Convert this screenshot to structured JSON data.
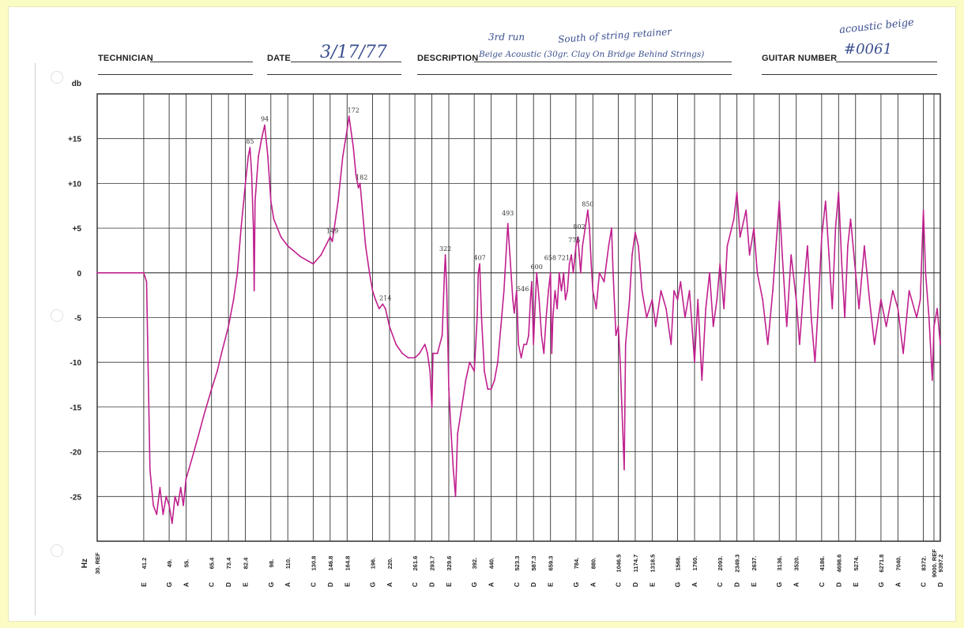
{
  "header": {
    "technician_label": "TECHNICIAN",
    "date_label": "DATE",
    "date_value": "3/17/77",
    "description_label": "DESCRIPTION",
    "description_value": "Beige Acoustic (30gr. Clay On Bridge Behind Strings)",
    "description_note_1": "3rd run",
    "description_note_2": "South of string retainer",
    "guitar_number_label": "GUITAR NUMBER",
    "guitar_number_value": "#0061",
    "corner_note": "acoustic beige"
  },
  "chart_data": {
    "type": "line",
    "ylabel": "db",
    "xlabel": "Hz",
    "ylim": [
      -30,
      20
    ],
    "y_ticks": [
      {
        "value": 15,
        "label": "+15"
      },
      {
        "value": 10,
        "label": "+10"
      },
      {
        "value": 5,
        "label": "+5"
      },
      {
        "value": 0,
        "label": "0"
      },
      {
        "value": -5,
        "label": "-5"
      },
      {
        "value": -10,
        "label": "-10"
      },
      {
        "value": -15,
        "label": "-15"
      },
      {
        "value": -20,
        "label": "-20"
      },
      {
        "value": -25,
        "label": "-25"
      }
    ],
    "x_ticks": [
      {
        "freq": "30. REF",
        "note": ""
      },
      {
        "freq": "41.2",
        "note": "E"
      },
      {
        "freq": "49.",
        "note": "G"
      },
      {
        "freq": "55.",
        "note": "A"
      },
      {
        "freq": "65.4",
        "note": "C"
      },
      {
        "freq": "73.4",
        "note": "D"
      },
      {
        "freq": "82.4",
        "note": "E"
      },
      {
        "freq": "98.",
        "note": "G"
      },
      {
        "freq": "110.",
        "note": "A"
      },
      {
        "freq": "130.8",
        "note": "C"
      },
      {
        "freq": "146.8",
        "note": "D"
      },
      {
        "freq": "164.8",
        "note": "E"
      },
      {
        "freq": "196.",
        "note": "G"
      },
      {
        "freq": "220.",
        "note": "A"
      },
      {
        "freq": "261.6",
        "note": "C"
      },
      {
        "freq": "293.7",
        "note": "D"
      },
      {
        "freq": "329.6",
        "note": "E"
      },
      {
        "freq": "392.",
        "note": "G"
      },
      {
        "freq": "440.",
        "note": "A"
      },
      {
        "freq": "523.3",
        "note": "C"
      },
      {
        "freq": "587.3",
        "note": "D"
      },
      {
        "freq": "659.3",
        "note": "E"
      },
      {
        "freq": "784.",
        "note": "G"
      },
      {
        "freq": "880.",
        "note": "A"
      },
      {
        "freq": "1046.5",
        "note": "C"
      },
      {
        "freq": "1174.7",
        "note": "D"
      },
      {
        "freq": "1318.5",
        "note": "E"
      },
      {
        "freq": "1568.",
        "note": "G"
      },
      {
        "freq": "1760.",
        "note": "A"
      },
      {
        "freq": "2093.",
        "note": "C"
      },
      {
        "freq": "2349.3",
        "note": "D"
      },
      {
        "freq": "2637.",
        "note": "E"
      },
      {
        "freq": "3136.",
        "note": "G"
      },
      {
        "freq": "3520.",
        "note": "A"
      },
      {
        "freq": "4186.",
        "note": "C"
      },
      {
        "freq": "4698.6",
        "note": "D"
      },
      {
        "freq": "5274.",
        "note": "E"
      },
      {
        "freq": "6271.8",
        "note": "G"
      },
      {
        "freq": "7040.",
        "note": "A"
      },
      {
        "freq": "8372.",
        "note": "C"
      },
      {
        "freq": "9000. REF",
        "note": ""
      },
      {
        "freq": "9397.2",
        "note": "D"
      }
    ],
    "series": [
      {
        "color": "#c0208e",
        "points": [
          [
            30,
            0
          ],
          [
            40,
            0
          ],
          [
            41.2,
            0
          ],
          [
            42,
            -1
          ],
          [
            43,
            -22
          ],
          [
            44,
            -26
          ],
          [
            45,
            -27
          ],
          [
            46,
            -24
          ],
          [
            47,
            -27
          ],
          [
            48,
            -25
          ],
          [
            49,
            -26
          ],
          [
            50,
            -28
          ],
          [
            51,
            -25
          ],
          [
            52,
            -26
          ],
          [
            53,
            -24
          ],
          [
            54,
            -26
          ],
          [
            55,
            -23
          ],
          [
            56,
            -22
          ],
          [
            58,
            -20
          ],
          [
            60,
            -18
          ],
          [
            62,
            -16
          ],
          [
            65.4,
            -13
          ],
          [
            68,
            -11
          ],
          [
            70,
            -9
          ],
          [
            73.4,
            -6
          ],
          [
            76,
            -3
          ],
          [
            78,
            0
          ],
          [
            80,
            5
          ],
          [
            82.4,
            10
          ],
          [
            84,
            13
          ],
          [
            85,
            14
          ],
          [
            86,
            11
          ],
          [
            87,
            5
          ],
          [
            87.5,
            -2
          ],
          [
            88,
            8
          ],
          [
            90,
            13
          ],
          [
            92,
            15
          ],
          [
            94,
            16.5
          ],
          [
            96,
            13
          ],
          [
            98,
            8
          ],
          [
            100,
            6
          ],
          [
            105,
            4
          ],
          [
            110,
            3
          ],
          [
            120,
            1.8
          ],
          [
            130.8,
            1
          ],
          [
            138,
            2
          ],
          [
            146.8,
            4
          ],
          [
            149,
            3.5
          ],
          [
            155,
            8
          ],
          [
            160,
            13
          ],
          [
            164.8,
            16
          ],
          [
            167,
            17.5
          ],
          [
            172,
            14
          ],
          [
            175,
            11
          ],
          [
            178,
            9.5
          ],
          [
            180,
            10
          ],
          [
            182,
            8
          ],
          [
            187,
            3
          ],
          [
            192,
            0
          ],
          [
            196,
            -2
          ],
          [
            200,
            -3
          ],
          [
            205,
            -4
          ],
          [
            210,
            -3.5
          ],
          [
            214,
            -4
          ],
          [
            220,
            -6
          ],
          [
            230,
            -8
          ],
          [
            240,
            -9
          ],
          [
            250,
            -9.5
          ],
          [
            261.6,
            -9.5
          ],
          [
            270,
            -9
          ],
          [
            280,
            -8
          ],
          [
            285,
            -9
          ],
          [
            290,
            -11
          ],
          [
            293.7,
            -15
          ],
          [
            296,
            -9
          ],
          [
            305,
            -9
          ],
          [
            315,
            -7
          ],
          [
            320,
            0
          ],
          [
            322,
            2
          ],
          [
            325,
            -2
          ],
          [
            329.6,
            -13
          ],
          [
            335,
            -18
          ],
          [
            340,
            -22
          ],
          [
            345,
            -25
          ],
          [
            350,
            -18
          ],
          [
            360,
            -15
          ],
          [
            370,
            -12
          ],
          [
            380,
            -10
          ],
          [
            392,
            -11
          ],
          [
            400,
            -5
          ],
          [
            403,
            0
          ],
          [
            407,
            1
          ],
          [
            412,
            -5
          ],
          [
            420,
            -11
          ],
          [
            430,
            -13
          ],
          [
            440,
            -13
          ],
          [
            450,
            -12
          ],
          [
            460,
            -10
          ],
          [
            470,
            -6
          ],
          [
            480,
            -2
          ],
          [
            493,
            5.5
          ],
          [
            500,
            2
          ],
          [
            510,
            -3
          ],
          [
            515,
            -4.5
          ],
          [
            520,
            -3
          ],
          [
            523.3,
            -2
          ],
          [
            530,
            -8
          ],
          [
            540,
            -9.5
          ],
          [
            550,
            -8
          ],
          [
            560,
            -8
          ],
          [
            568,
            -7
          ],
          [
            575,
            -3
          ],
          [
            580,
            -1
          ],
          [
            587.3,
            -8
          ],
          [
            590,
            -6
          ],
          [
            600,
            0
          ],
          [
            610,
            -3
          ],
          [
            620,
            -7
          ],
          [
            630,
            -9
          ],
          [
            640,
            -5
          ],
          [
            650,
            -2
          ],
          [
            659.3,
            0
          ],
          [
            665,
            -9
          ],
          [
            670,
            -5
          ],
          [
            680,
            -2
          ],
          [
            690,
            -4
          ],
          [
            700,
            0
          ],
          [
            710,
            -2
          ],
          [
            721,
            0
          ],
          [
            730,
            -3
          ],
          [
            740,
            -2
          ],
          [
            750,
            1
          ],
          [
            760,
            2
          ],
          [
            770,
            0
          ],
          [
            784,
            3
          ],
          [
            795,
            4
          ],
          [
            802,
            2
          ],
          [
            810,
            0
          ],
          [
            820,
            3
          ],
          [
            835,
            5
          ],
          [
            850,
            7
          ],
          [
            860,
            5
          ],
          [
            870,
            1
          ],
          [
            880,
            -2
          ],
          [
            900,
            -4
          ],
          [
            920,
            0
          ],
          [
            950,
            -1
          ],
          [
            980,
            3
          ],
          [
            1000,
            5
          ],
          [
            1010,
            0
          ],
          [
            1030,
            -7
          ],
          [
            1046.5,
            -6
          ],
          [
            1060,
            -10
          ],
          [
            1080,
            -18
          ],
          [
            1090,
            -22
          ],
          [
            1100,
            -8
          ],
          [
            1130,
            -3
          ],
          [
            1150,
            2
          ],
          [
            1174.7,
            4.5
          ],
          [
            1200,
            3
          ],
          [
            1230,
            -2
          ],
          [
            1270,
            -5
          ],
          [
            1318.5,
            -3
          ],
          [
            1350,
            -6
          ],
          [
            1400,
            -2
          ],
          [
            1450,
            -4
          ],
          [
            1500,
            -8
          ],
          [
            1530,
            -2
          ],
          [
            1568,
            -3
          ],
          [
            1600,
            -1
          ],
          [
            1650,
            -5
          ],
          [
            1700,
            -2
          ],
          [
            1760,
            -10
          ],
          [
            1800,
            -3
          ],
          [
            1850,
            -12
          ],
          [
            1900,
            -4
          ],
          [
            1950,
            0
          ],
          [
            2000,
            -6
          ],
          [
            2050,
            -3
          ],
          [
            2093,
            1
          ],
          [
            2150,
            -4
          ],
          [
            2200,
            3
          ],
          [
            2300,
            6
          ],
          [
            2349.3,
            9
          ],
          [
            2400,
            4
          ],
          [
            2500,
            7
          ],
          [
            2560,
            2
          ],
          [
            2637,
            5
          ],
          [
            2700,
            0
          ],
          [
            2800,
            -3
          ],
          [
            2900,
            -8
          ],
          [
            3000,
            -2
          ],
          [
            3136,
            8
          ],
          [
            3200,
            2
          ],
          [
            3300,
            -6
          ],
          [
            3400,
            2
          ],
          [
            3520,
            -3
          ],
          [
            3600,
            -8
          ],
          [
            3700,
            -2
          ],
          [
            3800,
            3
          ],
          [
            3900,
            -5
          ],
          [
            4000,
            -10
          ],
          [
            4100,
            -3
          ],
          [
            4186,
            4
          ],
          [
            4300,
            8
          ],
          [
            4400,
            2
          ],
          [
            4500,
            -4
          ],
          [
            4600,
            5
          ],
          [
            4698.6,
            9
          ],
          [
            4800,
            1
          ],
          [
            4900,
            -5
          ],
          [
            5000,
            3
          ],
          [
            5100,
            6
          ],
          [
            5274,
            0
          ],
          [
            5400,
            -4
          ],
          [
            5600,
            3
          ],
          [
            5800,
            -3
          ],
          [
            6000,
            -8
          ],
          [
            6271.8,
            -3
          ],
          [
            6500,
            -6
          ],
          [
            6800,
            -2
          ],
          [
            7040,
            -4
          ],
          [
            7300,
            -9
          ],
          [
            7600,
            -2
          ],
          [
            8000,
            -5
          ],
          [
            8200,
            -3
          ],
          [
            8372,
            7
          ],
          [
            8500,
            0
          ],
          [
            8700,
            -5
          ],
          [
            8900,
            -12
          ],
          [
            9000,
            -6
          ],
          [
            9200,
            -4
          ],
          [
            9397.2,
            -8
          ]
        ]
      }
    ],
    "peak_labels": [
      {
        "f": 85,
        "db": 14,
        "text": "85"
      },
      {
        "f": 94,
        "db": 16.5,
        "text": "94"
      },
      {
        "f": 149,
        "db": 4,
        "text": "149"
      },
      {
        "f": 172,
        "db": 17.5,
        "text": "172"
      },
      {
        "f": 182,
        "db": 10,
        "text": "182"
      },
      {
        "f": 214,
        "db": -3.5,
        "text": "214"
      },
      {
        "f": 322,
        "db": 2,
        "text": "322"
      },
      {
        "f": 407,
        "db": 1,
        "text": "407"
      },
      {
        "f": 493,
        "db": 6,
        "text": "493"
      },
      {
        "f": 546,
        "db": -2.5,
        "text": "546"
      },
      {
        "f": 600,
        "db": 0,
        "text": "600"
      },
      {
        "f": 658,
        "db": 1,
        "text": "658"
      },
      {
        "f": 721,
        "db": 1,
        "text": "721"
      },
      {
        "f": 775,
        "db": 3,
        "text": "775"
      },
      {
        "f": 802,
        "db": 4.5,
        "text": "802"
      },
      {
        "f": 850,
        "db": 7,
        "text": "850"
      }
    ],
    "grid": true
  }
}
